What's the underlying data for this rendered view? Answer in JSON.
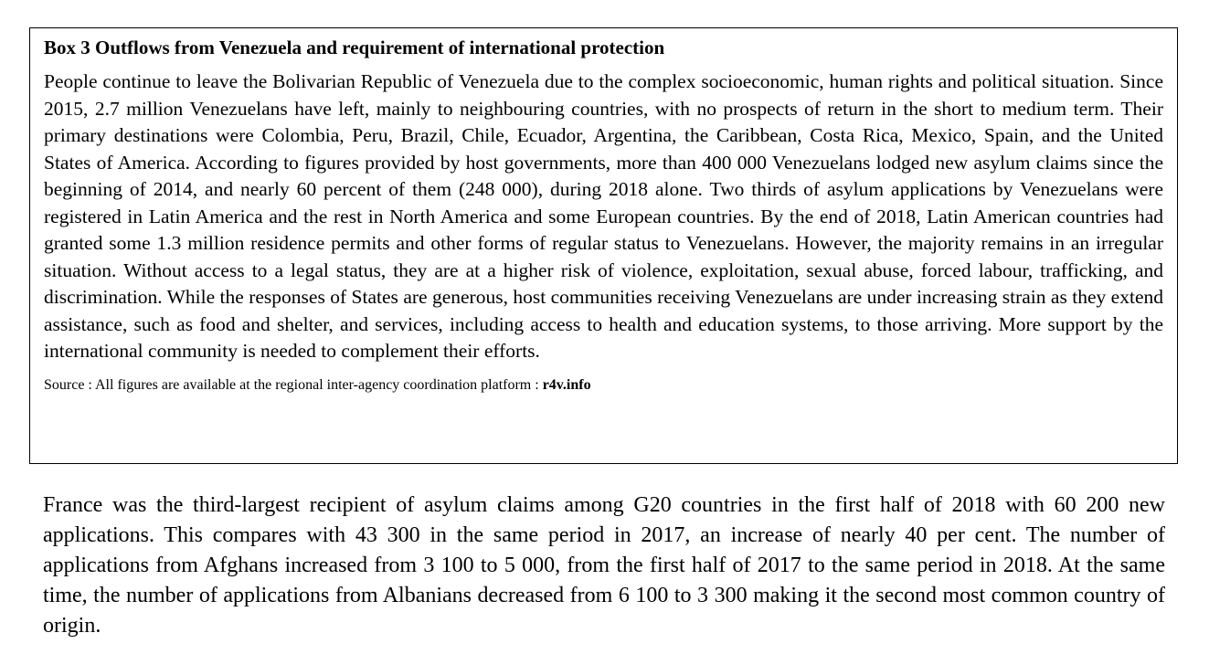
{
  "box": {
    "title": "Box 3 Outflows from Venezuela and requirement of international protection",
    "body": "People continue to leave the Bolivarian Republic of Venezuela due to the complex socioeconomic, human rights and political situation. Since 2015, 2.7 million Venezuelans have left, mainly to neighbouring countries, with no prospects of return in the short to medium term. Their primary destinations were Colombia, Peru, Brazil, Chile, Ecuador, Argentina, the Caribbean, Costa Rica, Mexico, Spain, and the United States of America. According to figures provided by host governments, more than 400 000 Venezuelans lodged new asylum claims since the beginning of 2014, and nearly 60 percent of them (248 000), during 2018 alone. Two thirds of asylum applications by Venezuelans were registered in Latin America and the rest in North America and some European countries. By the end of 2018, Latin American countries had granted some 1.3 million residence permits and other forms of regular status to Venezuelans. However, the majority remains in an irregular situation. Without access to a legal status, they are at a higher risk of violence, exploitation, sexual abuse, forced labour, trafficking, and discrimination. While the responses of States are generous, host communities receiving Venezuelans are under increasing strain as they extend assistance, such as food and shelter, and services, including access to health and education systems, to those arriving. More support by the international community is needed to complement their efforts.",
    "source_text": "Source : All figures are available at the regional inter-agency coordination platform : ",
    "source_link": "r4v.info"
  },
  "paragraph": "France was the third-largest recipient of asylum claims among G20 countries in the first half of 2018 with 60 200 new applications. This compares with 43 300 in the same period in 2017, an increase of nearly 40 per cent. The number of applications from Afghans increased from 3 100 to 5 000, from the first half of 2017 to the same period in 2018. At the same time, the number of applications from Albanians decreased from 6 100 to 3 300 making it the second most common country of origin."
}
